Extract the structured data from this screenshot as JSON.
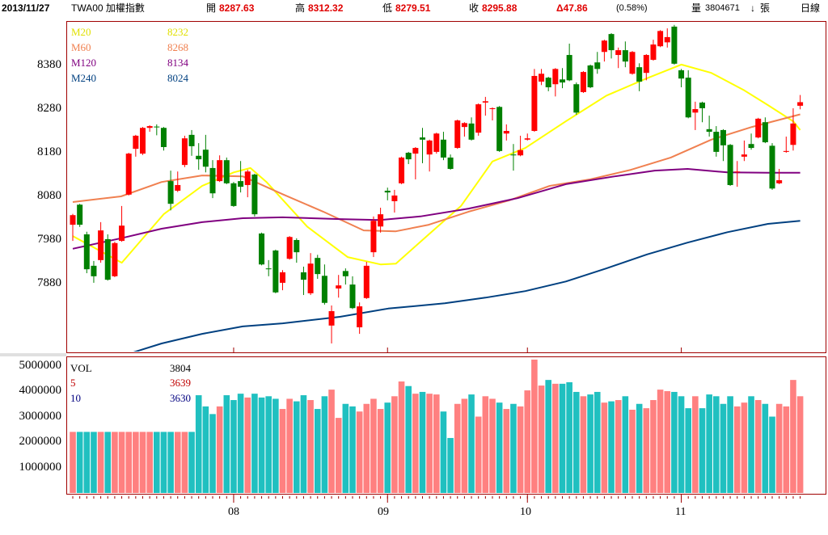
{
  "header": {
    "date": "2013/11/27",
    "symbol": "TWA00 加權指數",
    "open_label": "開",
    "open": "8287.63",
    "high_label": "高",
    "high": "8312.32",
    "low_label": "低",
    "low": "8279.51",
    "close_label": "收",
    "close": "8295.88",
    "change": "Δ47.86",
    "change_pct": "(0.58%)",
    "volume_label": "量",
    "volume": "3804671",
    "volume_arrow": "↓",
    "volume_unit": "張",
    "period": "日線"
  },
  "colors": {
    "up": "#ff0000",
    "down": "#008000",
    "vol_up": "#ff8080",
    "vol_down": "#20c0c0",
    "border": "#a00000",
    "m20": "#ffff00",
    "m60": "#f08050",
    "m120": "#800080",
    "m240": "#004080"
  },
  "legend": {
    "price": [
      {
        "name": "M20",
        "value": "8232"
      },
      {
        "name": "M60",
        "value": "8268"
      },
      {
        "name": "M120",
        "value": "8134"
      },
      {
        "name": "M240",
        "value": "8024"
      }
    ],
    "volume": [
      {
        "name": "VOL",
        "value": "3804"
      },
      {
        "name": "5",
        "value": "3639"
      },
      {
        "name": "10",
        "value": "3630"
      }
    ]
  },
  "chart_data": {
    "type": "candlestick",
    "price_ticks": [
      "8380",
      "8280",
      "8180",
      "8080",
      "7980",
      "7880"
    ],
    "volume_ticks": [
      "5000000",
      "4000000",
      "3000000",
      "2000000",
      "1000000"
    ],
    "month_labels": [
      {
        "label": "08",
        "index": 23
      },
      {
        "label": "09",
        "index": 45
      },
      {
        "label": "10",
        "index": 65
      },
      {
        "label": "11",
        "index": 87
      }
    ],
    "candles_ohlc": [
      [
        8015,
        8040,
        7978,
        8037
      ],
      [
        8061,
        8063,
        8010,
        8015
      ],
      [
        7993,
        7999,
        7904,
        7913
      ],
      [
        7921,
        7932,
        7882,
        7897
      ],
      [
        7934,
        8021,
        7928,
        8002
      ],
      [
        7982,
        7993,
        7887,
        7889
      ],
      [
        7897,
        7976,
        7895,
        7973
      ],
      [
        7978,
        8058,
        7976,
        8013
      ],
      [
        8084,
        8180,
        8082,
        8178
      ],
      [
        8189,
        8221,
        8171,
        8219
      ],
      [
        8178,
        8239,
        8175,
        8237
      ],
      [
        8237,
        8243,
        8228,
        8241
      ],
      [
        8240,
        8245,
        8220,
        8239
      ],
      [
        8237,
        8239,
        8185,
        8193
      ],
      [
        8115,
        8139,
        8048,
        8063
      ],
      [
        8093,
        8137,
        8090,
        8106
      ],
      [
        8152,
        8219,
        8147,
        8213
      ],
      [
        8221,
        8232,
        8173,
        8195
      ],
      [
        8173,
        8202,
        8141,
        8165
      ],
      [
        8187,
        8221,
        8135,
        8148
      ],
      [
        8145,
        8163,
        8076,
        8087
      ],
      [
        8115,
        8174,
        8113,
        8163
      ],
      [
        8163,
        8169,
        8108,
        8110
      ],
      [
        8110,
        8113,
        8056,
        8058
      ],
      [
        8115,
        8161,
        8089,
        8102
      ],
      [
        8106,
        8141,
        8078,
        8137
      ],
      [
        8130,
        8132,
        8034,
        8039
      ],
      [
        7995,
        7997,
        7922,
        7924
      ],
      [
        7915,
        7934,
        7897,
        7913
      ],
      [
        7956,
        7958,
        7858,
        7860
      ],
      [
        7882,
        7911,
        7865,
        7906
      ],
      [
        7937,
        7989,
        7935,
        7987
      ],
      [
        7980,
        7984,
        7928,
        7952
      ],
      [
        7906,
        7919,
        7854,
        7889
      ],
      [
        7858,
        7950,
        7854,
        7926
      ],
      [
        7939,
        7946,
        7891,
        7902
      ],
      [
        7898,
        7924,
        7832,
        7836
      ],
      [
        7784,
        7830,
        7743,
        7817
      ],
      [
        7869,
        7900,
        7848,
        7876
      ],
      [
        7909,
        7915,
        7878,
        7897
      ],
      [
        7878,
        7897,
        7822,
        7824
      ],
      [
        7780,
        7837,
        7765,
        7828
      ],
      [
        7847,
        7930,
        7845,
        7921
      ],
      [
        7952,
        8034,
        7941,
        8024
      ],
      [
        8011,
        8054,
        7997,
        8039
      ],
      [
        8093,
        8100,
        8071,
        8089
      ],
      [
        8069,
        8095,
        8043,
        8082
      ],
      [
        8110,
        8171,
        8108,
        8169
      ],
      [
        8180,
        8182,
        8154,
        8165
      ],
      [
        8178,
        8193,
        8119,
        8191
      ],
      [
        8215,
        8237,
        8156,
        8210
      ],
      [
        8176,
        8210,
        8137,
        8208
      ],
      [
        8182,
        8226,
        8178,
        8224
      ],
      [
        8210,
        8228,
        8163,
        8169
      ],
      [
        8169,
        8176,
        8141,
        8143
      ],
      [
        8191,
        8256,
        8189,
        8254
      ],
      [
        8239,
        8250,
        8217,
        8248
      ],
      [
        8247,
        8261,
        8208,
        8210
      ],
      [
        8226,
        8293,
        8219,
        8291
      ],
      [
        8295,
        8308,
        8265,
        8298
      ],
      [
        8280,
        8284,
        8254,
        8282
      ],
      [
        8285,
        8287,
        8182,
        8184
      ],
      [
        8224,
        8245,
        8208,
        8230
      ],
      [
        8176,
        8200,
        8139,
        8174
      ],
      [
        8174,
        8219,
        8172,
        8186
      ],
      [
        8210,
        8224,
        8208,
        8213
      ],
      [
        8230,
        8372,
        8228,
        8356
      ],
      [
        8343,
        8372,
        8335,
        8361
      ],
      [
        8352,
        8354,
        8321,
        8330
      ],
      [
        8337,
        8374,
        8309,
        8372
      ],
      [
        8348,
        8374,
        8328,
        8341
      ],
      [
        8404,
        8430,
        8344,
        8346
      ],
      [
        8337,
        8341,
        8267,
        8272
      ],
      [
        8319,
        8367,
        8317,
        8365
      ],
      [
        8380,
        8382,
        8328,
        8330
      ],
      [
        8387,
        8411,
        8361,
        8372
      ],
      [
        8411,
        8439,
        8389,
        8437
      ],
      [
        8452,
        8454,
        8396,
        8415
      ],
      [
        8404,
        8421,
        8374,
        8415
      ],
      [
        8415,
        8435,
        8376,
        8389
      ],
      [
        8361,
        8413,
        8359,
        8411
      ],
      [
        8376,
        8385,
        8321,
        8343
      ],
      [
        8363,
        8406,
        8346,
        8404
      ],
      [
        8393,
        8439,
        8391,
        8428
      ],
      [
        8424,
        8461,
        8422,
        8459
      ],
      [
        8433,
        8465,
        8421,
        8445
      ],
      [
        8469,
        8473,
        8382,
        8384
      ],
      [
        8369,
        8372,
        8330,
        8350
      ],
      [
        8352,
        8369,
        8259,
        8261
      ],
      [
        8272,
        8297,
        8232,
        8280
      ],
      [
        8295,
        8297,
        8250,
        8282
      ],
      [
        8234,
        8265,
        8217,
        8228
      ],
      [
        8228,
        8241,
        8171,
        8182
      ],
      [
        8232,
        8234,
        8161,
        8197
      ],
      [
        8198,
        8200,
        8104,
        8106
      ],
      [
        8136,
        8161,
        8102,
        8137
      ],
      [
        8171,
        8208,
        8161,
        8176
      ],
      [
        8200,
        8224,
        8187,
        8191
      ],
      [
        8215,
        8260,
        8213,
        8258
      ],
      [
        8250,
        8261,
        8202,
        8204
      ],
      [
        8196,
        8202,
        8095,
        8098
      ],
      [
        8110,
        8143,
        8108,
        8117
      ],
      [
        8182,
        8217,
        8180,
        8184
      ],
      [
        8198,
        8282,
        8185,
        8247
      ],
      [
        8287.63,
        8312.32,
        8279.51,
        8295.88
      ]
    ],
    "volume_millions": [
      2.4,
      2.4,
      2.4,
      2.4,
      2.4,
      2.4,
      2.4,
      2.4,
      2.4,
      2.4,
      2.4,
      2.4,
      2.4,
      2.4,
      2.4,
      2.4,
      2.4,
      2.4,
      3.84,
      3.4,
      3.1,
      3.4,
      3.84,
      3.65,
      3.9,
      3.75,
      3.9,
      3.75,
      3.8,
      3.7,
      3.3,
      3.7,
      3.6,
      3.84,
      3.65,
      3.3,
      3.8,
      4.06,
      2.95,
      3.5,
      3.4,
      3.2,
      3.5,
      3.7,
      3.3,
      3.55,
      3.8,
      4.38,
      4.2,
      3.9,
      3.97,
      3.9,
      3.87,
      3.2,
      2.16,
      3.5,
      3.7,
      3.87,
      3.0,
      3.8,
      3.7,
      3.55,
      3.3,
      3.5,
      3.4,
      4.03,
      5.24,
      4.22,
      4.44,
      4.29,
      4.29,
      4.35,
      3.97,
      3.8,
      3.87,
      3.97,
      3.55,
      3.6,
      3.65,
      3.8,
      3.27,
      3.5,
      3.33,
      3.65,
      4.06,
      4.0,
      3.97,
      3.8,
      3.33,
      3.8,
      3.33,
      3.87,
      3.8,
      3.5,
      3.8,
      3.4,
      3.55,
      3.8,
      3.65,
      3.5,
      3.0,
      3.5,
      3.4,
      4.44,
      3.8
    ],
    "ma": {
      "M20": [
        [
          0,
          7989
        ],
        [
          7,
          7928
        ],
        [
          13,
          8039
        ],
        [
          18.5,
          8104
        ],
        [
          23,
          8135
        ],
        [
          25.4,
          8145
        ],
        [
          27.7,
          8113
        ],
        [
          33.5,
          8011
        ],
        [
          39.3,
          7941
        ],
        [
          44,
          7924
        ],
        [
          46.2,
          7926
        ],
        [
          50.9,
          7993
        ],
        [
          55.5,
          8058
        ],
        [
          60,
          8160
        ],
        [
          64.7,
          8191
        ],
        [
          70.5,
          8252
        ],
        [
          76.3,
          8311
        ],
        [
          82,
          8350
        ],
        [
          87,
          8382
        ],
        [
          91.3,
          8363
        ],
        [
          96,
          8323
        ],
        [
          99.4,
          8289
        ],
        [
          103,
          8252
        ],
        [
          104,
          8232
        ]
      ],
      "M60": [
        [
          0,
          8067
        ],
        [
          6.9,
          8080
        ],
        [
          12.7,
          8113
        ],
        [
          18.5,
          8128
        ],
        [
          24.3,
          8126
        ],
        [
          30,
          8085
        ],
        [
          35.8,
          8045
        ],
        [
          41.6,
          8002
        ],
        [
          46.2,
          8000
        ],
        [
          50.9,
          8015
        ],
        [
          56.6,
          8045
        ],
        [
          62.4,
          8071
        ],
        [
          68.2,
          8104
        ],
        [
          74,
          8119
        ],
        [
          79.8,
          8141
        ],
        [
          85.5,
          8169
        ],
        [
          91.3,
          8210
        ],
        [
          97.1,
          8239
        ],
        [
          104,
          8268
        ]
      ],
      "M120": [
        [
          0,
          7960
        ],
        [
          6.9,
          7984
        ],
        [
          12.7,
          8006
        ],
        [
          18.5,
          8021
        ],
        [
          24.3,
          8030
        ],
        [
          30,
          8032
        ],
        [
          38.2,
          8028
        ],
        [
          43.9,
          8026
        ],
        [
          49.7,
          8034
        ],
        [
          56.6,
          8052
        ],
        [
          63.6,
          8076
        ],
        [
          70.5,
          8108
        ],
        [
          77.5,
          8126
        ],
        [
          83.2,
          8139
        ],
        [
          87.9,
          8143
        ],
        [
          93.6,
          8135
        ],
        [
          99.4,
          8134
        ],
        [
          104,
          8134
        ]
      ],
      "M240": [
        [
          8.7,
          7723
        ],
        [
          12.7,
          7743
        ],
        [
          18.5,
          7765
        ],
        [
          24.3,
          7782
        ],
        [
          30,
          7789
        ],
        [
          38.2,
          7804
        ],
        [
          45.1,
          7823
        ],
        [
          53.2,
          7835
        ],
        [
          59,
          7848
        ],
        [
          64.7,
          7863
        ],
        [
          70.5,
          7885
        ],
        [
          76.3,
          7915
        ],
        [
          82.1,
          7947
        ],
        [
          87.9,
          7974
        ],
        [
          93.6,
          7998
        ],
        [
          99.4,
          8017
        ],
        [
          104,
          8024
        ]
      ]
    }
  }
}
